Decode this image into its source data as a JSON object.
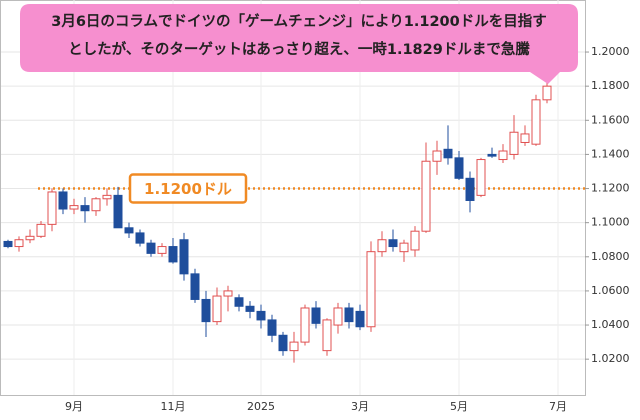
{
  "chart_data": {
    "type": "candlestick",
    "callout": [
      "3月6日のコラムでドイツの「ゲームチェンジ」により1.1200ドルを目指す",
      "としたが、そのターゲットはあっさり超え、一時1.1829ドルまで急騰"
    ],
    "reference_line": {
      "value": 1.12,
      "label": "1.1200ドル",
      "color": "#f08a24"
    },
    "categories": [
      null,
      null,
      null,
      null,
      null,
      null,
      "9月",
      null,
      null,
      null,
      null,
      null,
      null,
      null,
      null,
      "11月",
      null,
      null,
      null,
      null,
      null,
      null,
      null,
      "2025",
      null,
      null,
      null,
      null,
      null,
      null,
      null,
      null,
      "3月",
      null,
      null,
      null,
      null,
      null,
      null,
      null,
      null,
      "5月",
      null,
      null,
      null,
      null,
      null,
      null,
      null,
      null,
      "7月"
    ],
    "series": [
      {
        "up_color": "#e05050",
        "down_color": "#1f4e9c",
        "open": [
          1.089,
          1.086,
          1.09,
          1.092,
          1.099,
          1.118,
          1.108,
          1.11,
          1.107,
          1.114,
          1.116,
          1.097,
          1.094,
          1.088,
          1.082,
          1.086,
          1.09,
          1.07,
          1.055,
          1.042,
          1.057,
          1.056,
          1.051,
          1.048,
          1.043,
          1.034,
          1.025,
          1.03,
          1.05,
          1.025,
          1.04,
          1.05,
          1.048,
          1.039,
          1.083,
          1.09,
          1.083,
          1.084,
          1.095,
          1.136,
          1.143,
          1.138,
          1.126,
          1.116,
          1.14,
          1.137,
          1.14,
          1.147,
          1.146,
          1.172,
          null
        ],
        "high": [
          1.09,
          1.092,
          1.096,
          1.101,
          1.12,
          1.12,
          1.114,
          1.115,
          1.115,
          1.12,
          1.121,
          1.1,
          1.096,
          1.09,
          1.088,
          1.091,
          1.094,
          1.073,
          1.06,
          1.062,
          1.063,
          1.058,
          1.054,
          1.052,
          1.046,
          1.036,
          1.036,
          1.052,
          1.054,
          1.044,
          1.053,
          1.053,
          1.052,
          1.089,
          1.095,
          1.096,
          1.09,
          1.098,
          1.147,
          1.148,
          1.157,
          1.142,
          1.13,
          1.138,
          1.144,
          1.146,
          1.163,
          1.157,
          1.175,
          1.1829,
          null
        ],
        "low": [
          1.085,
          1.083,
          1.088,
          1.091,
          1.095,
          1.105,
          1.105,
          1.1,
          1.104,
          1.11,
          1.097,
          1.091,
          1.086,
          1.08,
          1.08,
          1.076,
          1.066,
          1.053,
          1.033,
          1.04,
          1.048,
          1.048,
          1.044,
          1.038,
          1.03,
          1.022,
          1.018,
          1.028,
          1.038,
          1.022,
          1.035,
          1.038,
          1.037,
          1.036,
          1.08,
          1.083,
          1.077,
          1.08,
          1.094,
          1.128,
          1.134,
          1.125,
          1.106,
          1.115,
          1.138,
          1.135,
          1.137,
          1.145,
          1.145,
          1.17,
          null
        ],
        "close": [
          1.086,
          1.09,
          1.092,
          1.099,
          1.118,
          1.108,
          1.11,
          1.107,
          1.114,
          1.116,
          1.097,
          1.094,
          1.088,
          1.082,
          1.086,
          1.077,
          1.07,
          1.055,
          1.042,
          1.057,
          1.06,
          1.051,
          1.048,
          1.043,
          1.034,
          1.025,
          1.03,
          1.05,
          1.041,
          1.043,
          1.05,
          1.042,
          1.039,
          1.083,
          1.09,
          1.086,
          1.088,
          1.095,
          1.136,
          1.142,
          1.138,
          1.126,
          1.113,
          1.137,
          1.139,
          1.142,
          1.153,
          1.152,
          1.172,
          1.18,
          null
        ]
      }
    ],
    "ylim": [
      0.999,
      1.2305
    ],
    "yticks": [
      {
        "value": 1.02,
        "label": "1.0200"
      },
      {
        "value": 1.04,
        "label": "1.0400"
      },
      {
        "value": 1.06,
        "label": "1.0600"
      },
      {
        "value": 1.08,
        "label": "1.0800"
      },
      {
        "value": 1.1,
        "label": "1.1000"
      },
      {
        "value": 1.12,
        "label": "1.1200"
      },
      {
        "value": 1.14,
        "label": "1.1400"
      },
      {
        "value": 1.16,
        "label": "1.1600"
      },
      {
        "value": 1.18,
        "label": "1.1800"
      },
      {
        "value": 1.2,
        "label": "1.2000"
      }
    ],
    "grid": true
  }
}
